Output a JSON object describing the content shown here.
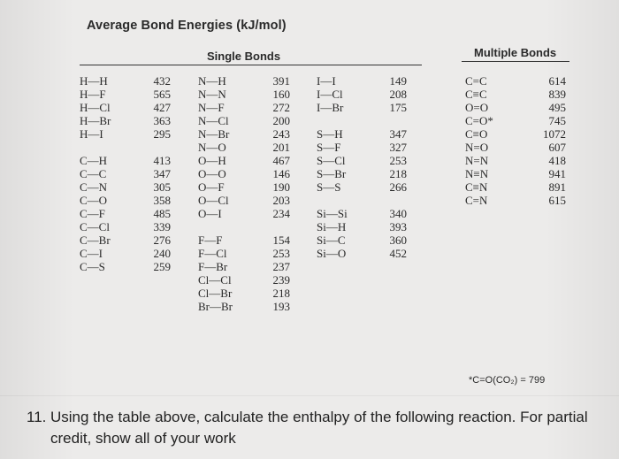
{
  "table": {
    "title": "Average Bond Energies (kJ/mol)",
    "single_header": "Single Bonds",
    "multiple_header": "Multiple Bonds",
    "col1": [
      {
        "bond": "H—H",
        "energy": "432"
      },
      {
        "bond": "H—F",
        "energy": "565"
      },
      {
        "bond": "H—Cl",
        "energy": "427"
      },
      {
        "bond": "H—Br",
        "energy": "363"
      },
      {
        "bond": "H—I",
        "energy": "295"
      },
      {
        "bond": "C—H",
        "energy": "413"
      },
      {
        "bond": "C—C",
        "energy": "347"
      },
      {
        "bond": "C—N",
        "energy": "305"
      },
      {
        "bond": "C—O",
        "energy": "358"
      },
      {
        "bond": "C—F",
        "energy": "485"
      },
      {
        "bond": "C—Cl",
        "energy": "339"
      },
      {
        "bond": "C—Br",
        "energy": "276"
      },
      {
        "bond": "C—I",
        "energy": "240"
      },
      {
        "bond": "C—S",
        "energy": "259"
      }
    ],
    "col2": [
      {
        "bond": "N—H",
        "energy": "391"
      },
      {
        "bond": "N—N",
        "energy": "160"
      },
      {
        "bond": "N—F",
        "energy": "272"
      },
      {
        "bond": "N—Cl",
        "energy": "200"
      },
      {
        "bond": "N—Br",
        "energy": "243"
      },
      {
        "bond": "N—O",
        "energy": "201"
      },
      {
        "bond": "O—H",
        "energy": "467"
      },
      {
        "bond": "O—O",
        "energy": "146"
      },
      {
        "bond": "O—F",
        "energy": "190"
      },
      {
        "bond": "O—Cl",
        "energy": "203"
      },
      {
        "bond": "O—I",
        "energy": "234"
      },
      {
        "bond": "F—F",
        "energy": "154"
      },
      {
        "bond": "F—Cl",
        "energy": "253"
      },
      {
        "bond": "F—Br",
        "energy": "237"
      },
      {
        "bond": "Cl—Cl",
        "energy": "239"
      },
      {
        "bond": "Cl—Br",
        "energy": "218"
      },
      {
        "bond": "Br—Br",
        "energy": "193"
      }
    ],
    "col3": [
      {
        "bond": "I—I",
        "energy": "149"
      },
      {
        "bond": "I—Cl",
        "energy": "208"
      },
      {
        "bond": "I—Br",
        "energy": "175"
      },
      {
        "bond": "S—H",
        "energy": "347"
      },
      {
        "bond": "S—F",
        "energy": "327"
      },
      {
        "bond": "S—Cl",
        "energy": "253"
      },
      {
        "bond": "S—Br",
        "energy": "218"
      },
      {
        "bond": "S—S",
        "energy": "266"
      },
      {
        "bond": "Si—Si",
        "energy": "340"
      },
      {
        "bond": "Si—H",
        "energy": "393"
      },
      {
        "bond": "Si—C",
        "energy": "360"
      },
      {
        "bond": "Si—O",
        "energy": "452"
      }
    ],
    "multiple": [
      {
        "bond": "C=C",
        "energy": "614"
      },
      {
        "bond": "C≡C",
        "energy": "839"
      },
      {
        "bond": "O=O",
        "energy": "495"
      },
      {
        "bond": "C=O*",
        "energy": "745"
      },
      {
        "bond": "C≡O",
        "energy": "1072"
      },
      {
        "bond": "N=O",
        "energy": "607"
      },
      {
        "bond": "N=N",
        "energy": "418"
      },
      {
        "bond": "N≡N",
        "energy": "941"
      },
      {
        "bond": "C≡N",
        "energy": "891"
      },
      {
        "bond": "C=N",
        "energy": "615"
      }
    ],
    "footnote": "*C=O(CO₂) = 799"
  },
  "question": {
    "number": "11.",
    "text": "Using the table above, calculate the enthalpy of the following reaction. For partial credit, show all of your work"
  }
}
